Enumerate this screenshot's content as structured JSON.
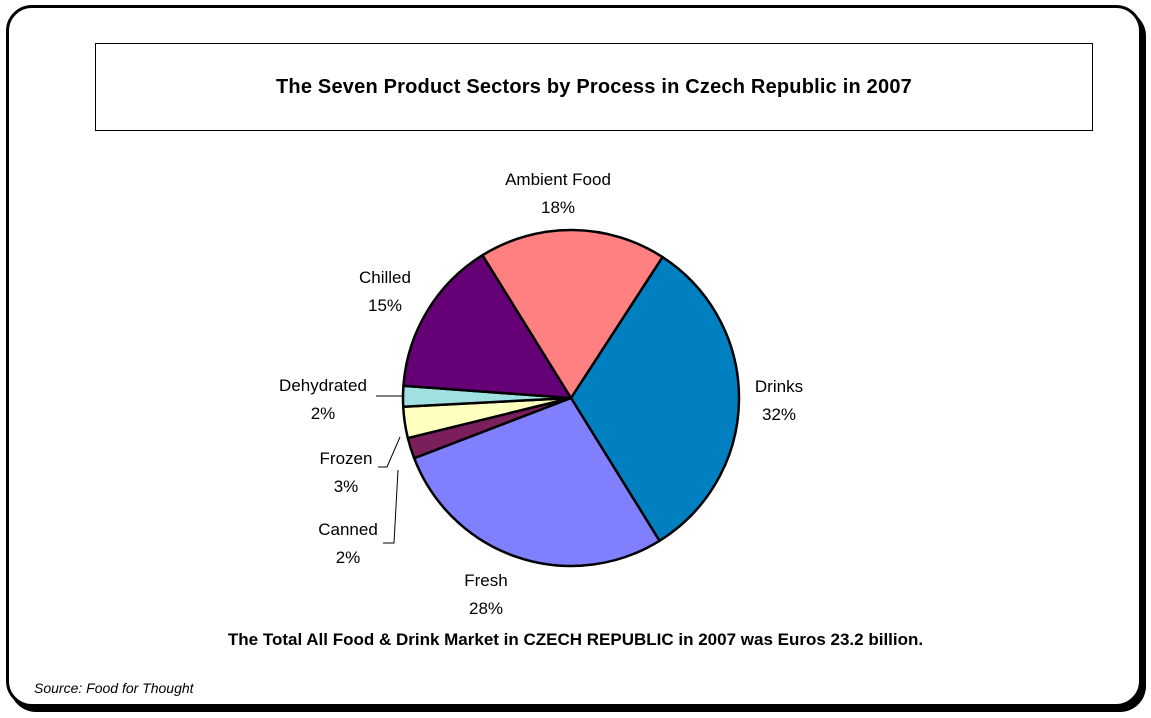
{
  "chart_data": {
    "type": "pie",
    "title": "The Seven Product Sectors by Process in Czech Republic in 2007",
    "start_angle_deg": 33,
    "slices": [
      {
        "label": "Drinks",
        "percent_label": "32%",
        "value": 32,
        "color": "#0080C0"
      },
      {
        "label": "Fresh",
        "percent_label": "28%",
        "value": 28,
        "color": "#8080FF"
      },
      {
        "label": "Canned",
        "percent_label": "2%",
        "value": 2,
        "color": "#7A1F5C"
      },
      {
        "label": "Frozen",
        "percent_label": "3%",
        "value": 3,
        "color": "#FFFFC0"
      },
      {
        "label": "Dehydrated",
        "percent_label": "2%",
        "value": 2,
        "color": "#A0E0E0"
      },
      {
        "label": "Chilled",
        "percent_label": "15%",
        "value": 15,
        "color": "#660077"
      },
      {
        "label": "Ambient Food",
        "percent_label": "18%",
        "value": 18,
        "color": "#FF8080"
      }
    ],
    "footnote": "The Total All Food & Drink Market in CZECH REPUBLIC in 2007 was Euros  23.2 billion.",
    "source": "Source: Food for Thought"
  }
}
